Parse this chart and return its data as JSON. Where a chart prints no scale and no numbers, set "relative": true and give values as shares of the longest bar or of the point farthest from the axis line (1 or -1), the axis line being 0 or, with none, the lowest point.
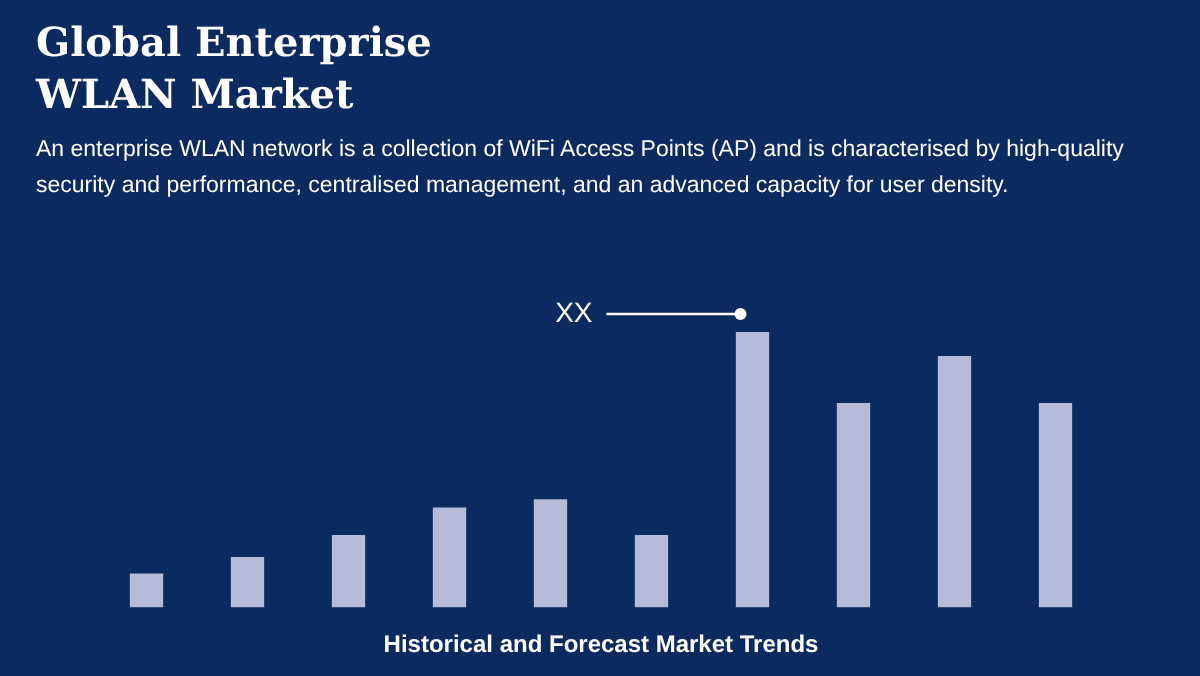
{
  "chart_data": {
    "type": "bar",
    "title": "Global Enterprise WLAN Market",
    "subtitle": "An enterprise WLAN network is a collection of WiFi Access Points (AP) and is characterised by high-quality security and performance, centralised management, and an advanced capacity for user density.",
    "xlabel": "Historical and Forecast Market Trends",
    "categories": [
      null,
      null,
      null,
      null,
      null,
      null,
      null,
      null,
      null,
      null
    ],
    "values": [
      0.12,
      0.18,
      0.26,
      0.36,
      0.39,
      0.26,
      1,
      0.74,
      0.91,
      0.74
    ],
    "color": "#b4bcda",
    "relative": true,
    "annotations": [
      "XX"
    ]
  }
}
